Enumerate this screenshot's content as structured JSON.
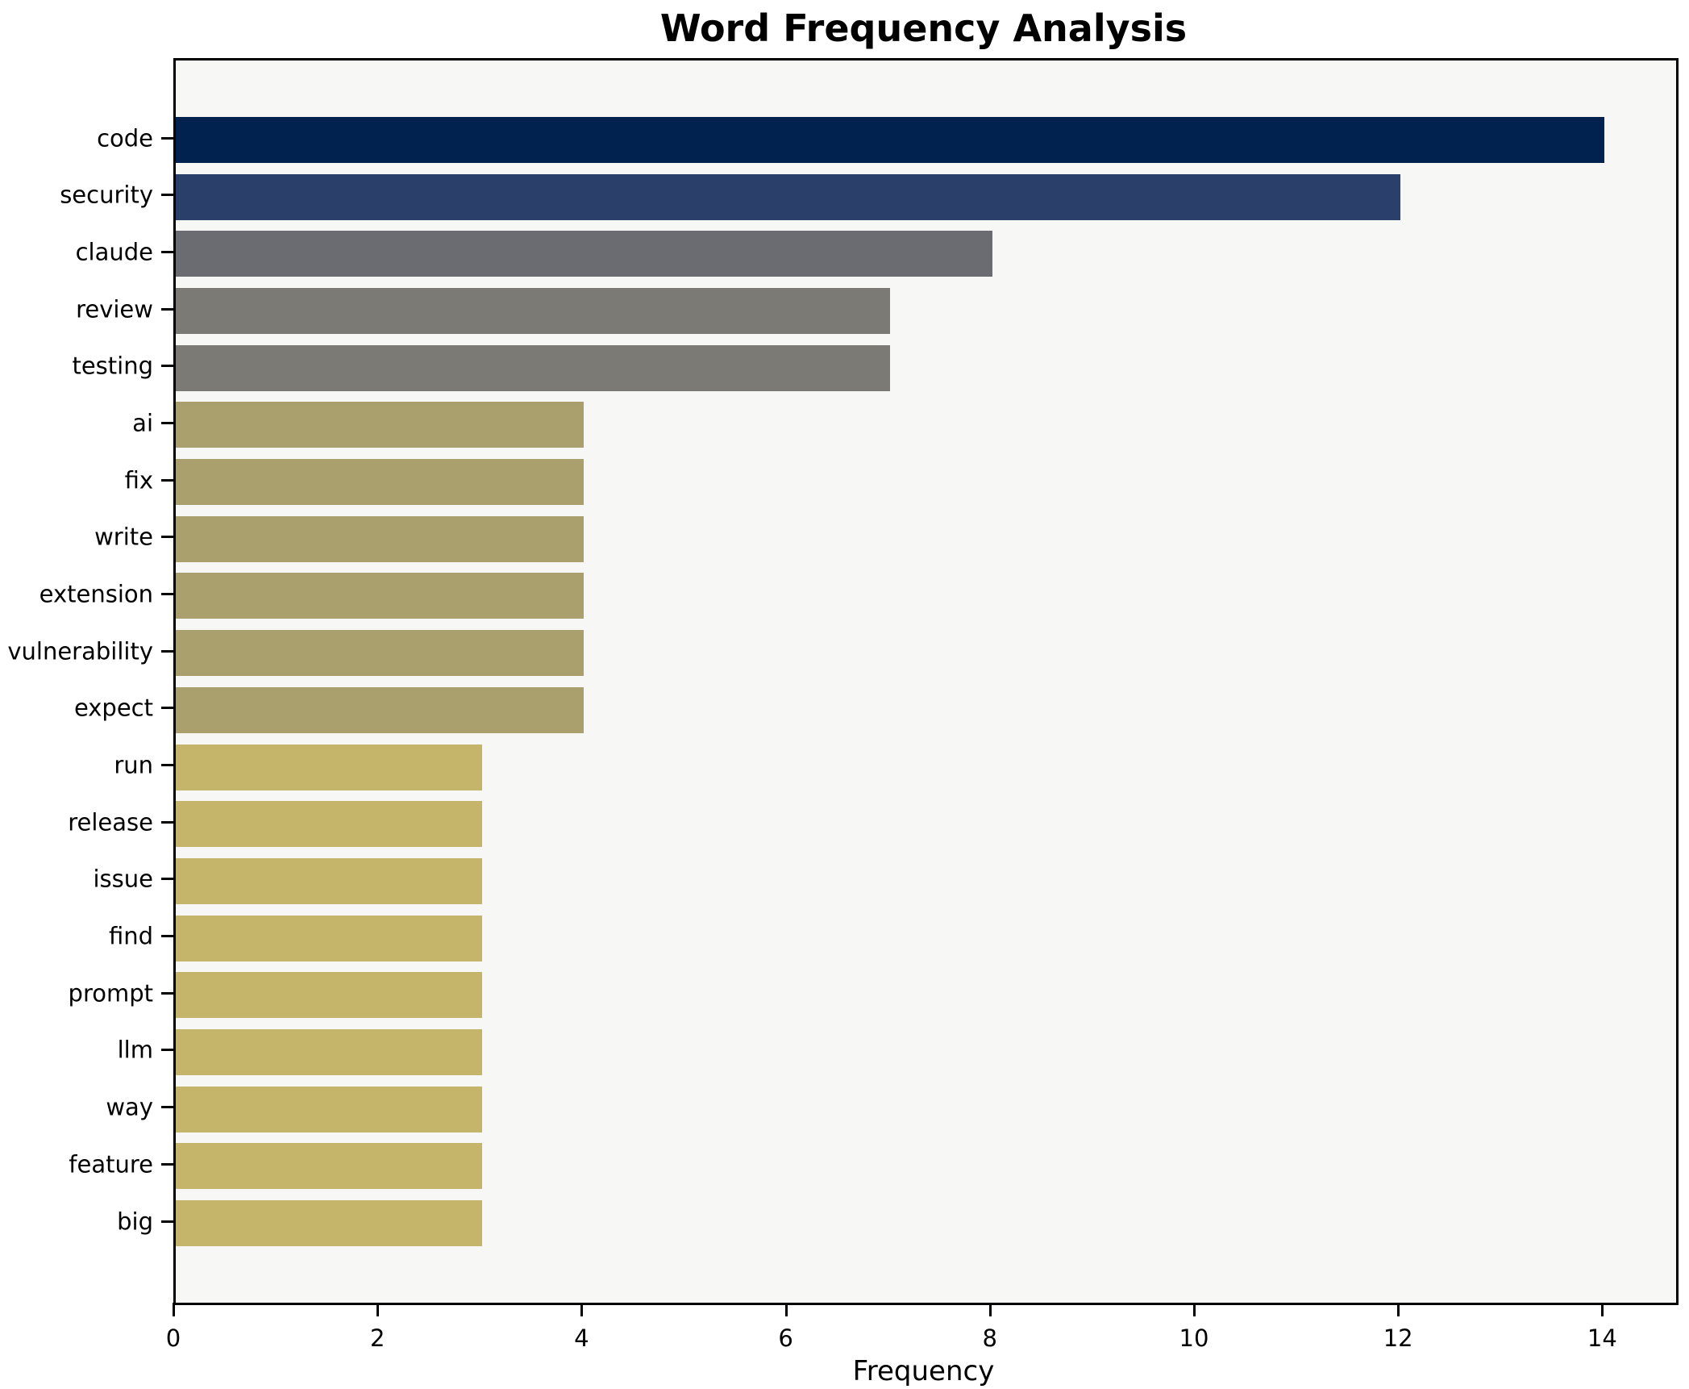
{
  "chart_data": {
    "type": "bar",
    "orientation": "horizontal",
    "title": "Word Frequency Analysis",
    "xlabel": "Frequency",
    "ylabel": "",
    "categories": [
      "code",
      "security",
      "claude",
      "review",
      "testing",
      "ai",
      "fix",
      "write",
      "extension",
      "vulnerability",
      "expect",
      "run",
      "release",
      "issue",
      "find",
      "prompt",
      "llm",
      "way",
      "feature",
      "big"
    ],
    "values": [
      14,
      12,
      8,
      7,
      7,
      4,
      4,
      4,
      4,
      4,
      4,
      3,
      3,
      3,
      3,
      3,
      3,
      3,
      3,
      3
    ],
    "bar_colors": [
      "#01224e",
      "#2b3f6b",
      "#6a6c72",
      "#7b7a75",
      "#7b7a75",
      "#a9a06e",
      "#a9a06e",
      "#a9a06e",
      "#a9a06e",
      "#a9a06e",
      "#a9a06e",
      "#c4b56a",
      "#c4b56a",
      "#c4b56a",
      "#c4b56a",
      "#c4b56a",
      "#c4b56a",
      "#c4b56a",
      "#c4b56a",
      "#c4b56a"
    ],
    "xlim": [
      0,
      14.7
    ],
    "xticks": [
      0,
      2,
      4,
      6,
      8,
      10,
      12,
      14
    ],
    "grid": false,
    "legend": null,
    "plot_background": "#f7f7f5",
    "figure_background": "#ffffff",
    "spine_color": "#000000"
  }
}
